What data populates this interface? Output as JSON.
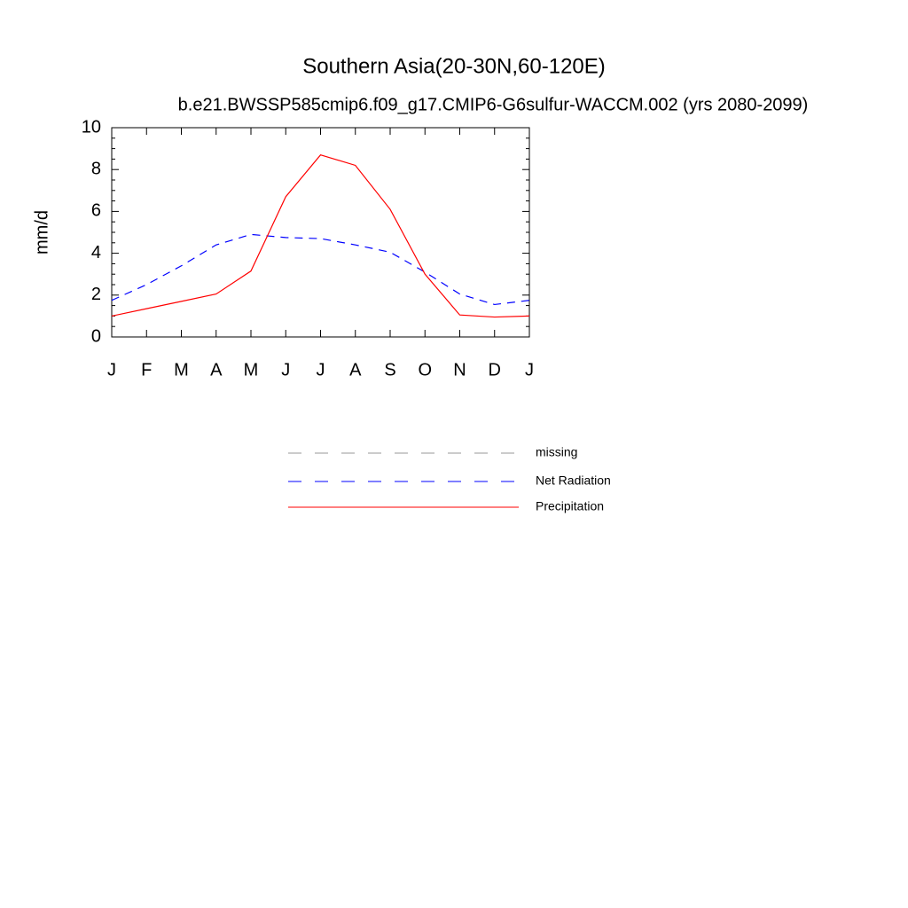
{
  "chart_data": {
    "type": "line",
    "title": "Southern Asia(20-30N,60-120E)",
    "subtitle": "b.e21.BWSSP585cmip6.f09_g17.CMIP6-G6sulfur-WACCM.002 (yrs 2080-2099)",
    "y_label": "mm/d",
    "categories": [
      "J",
      "F",
      "M",
      "A",
      "M",
      "J",
      "J",
      "A",
      "S",
      "O",
      "N",
      "D",
      "J"
    ],
    "series": [
      {
        "name": "missing",
        "color": "#999999",
        "dash": true,
        "values": [
          null,
          null,
          null,
          null,
          null,
          null,
          null,
          null,
          null,
          null,
          null,
          null,
          null
        ]
      },
      {
        "name": "Net Radiation",
        "color": "#0000ff",
        "dash": true,
        "values": [
          1.75,
          2.5,
          3.4,
          4.4,
          4.9,
          4.75,
          4.7,
          4.4,
          4.05,
          3.1,
          2.05,
          1.55,
          1.75
        ]
      },
      {
        "name": "Precipitation",
        "color": "#ff0000",
        "dash": false,
        "values": [
          1.0,
          1.35,
          1.7,
          2.05,
          3.15,
          6.7,
          8.7,
          8.2,
          6.1,
          3.0,
          1.05,
          0.95,
          1.0
        ]
      }
    ],
    "ylim": [
      0,
      10
    ],
    "yticks": [
      0,
      2,
      4,
      6,
      8,
      10
    ],
    "yminorticks": [
      0.5,
      1,
      1.5,
      2.5,
      3,
      3.5,
      4.5,
      5,
      5.5,
      6.5,
      7,
      7.5,
      8.5,
      9,
      9.5
    ],
    "grid": false
  }
}
